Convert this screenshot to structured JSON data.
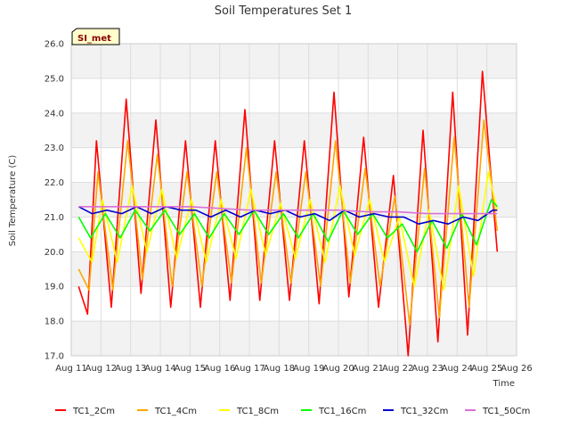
{
  "chart_data": {
    "type": "line",
    "title": "Soil Temperatures Set 1",
    "xlabel": "Time",
    "ylabel": "Soil Temperature (C)",
    "site_label": "SI_met",
    "xlim": [
      11,
      26
    ],
    "ylim": [
      17.0,
      26.0
    ],
    "x_ticks": [
      {
        "value": 11,
        "label": "Aug 11"
      },
      {
        "value": 12,
        "label": "Aug 12"
      },
      {
        "value": 13,
        "label": "Aug 13"
      },
      {
        "value": 14,
        "label": "Aug 14"
      },
      {
        "value": 15,
        "label": "Aug 15"
      },
      {
        "value": 16,
        "label": "Aug 16"
      },
      {
        "value": 17,
        "label": "Aug 17"
      },
      {
        "value": 18,
        "label": "Aug 18"
      },
      {
        "value": 19,
        "label": "Aug 19"
      },
      {
        "value": 20,
        "label": "Aug 20"
      },
      {
        "value": 21,
        "label": "Aug 21"
      },
      {
        "value": 22,
        "label": "Aug 22"
      },
      {
        "value": 23,
        "label": "Aug 23"
      },
      {
        "value": 24,
        "label": "Aug 24"
      },
      {
        "value": 25,
        "label": "Aug 25"
      },
      {
        "value": 26,
        "label": "Aug 26"
      }
    ],
    "y_ticks": [
      {
        "value": 17,
        "label": "17.0"
      },
      {
        "value": 18,
        "label": "18.0"
      },
      {
        "value": 19,
        "label": "19.0"
      },
      {
        "value": 20,
        "label": "20.0"
      },
      {
        "value": 21,
        "label": "21.0"
      },
      {
        "value": 22,
        "label": "22.0"
      },
      {
        "value": 23,
        "label": "23.0"
      },
      {
        "value": 24,
        "label": "24.0"
      },
      {
        "value": 25,
        "label": "25.0"
      },
      {
        "value": 26,
        "label": "26.0"
      }
    ],
    "grid": true,
    "legend_position": "bottom",
    "series": [
      {
        "name": "TC1_2Cm",
        "color": "#ff0000",
        "x": [
          11.25,
          11.55,
          11.85,
          12.35,
          12.85,
          13.35,
          13.85,
          14.35,
          14.85,
          15.35,
          15.85,
          16.35,
          16.85,
          17.35,
          17.85,
          18.35,
          18.85,
          19.35,
          19.85,
          20.35,
          20.85,
          21.35,
          21.85,
          22.35,
          22.85,
          23.35,
          23.85,
          24.35,
          24.85,
          25.35
        ],
        "y": [
          19.0,
          18.2,
          23.2,
          18.4,
          24.4,
          18.8,
          23.8,
          18.4,
          23.2,
          18.4,
          23.2,
          18.6,
          24.1,
          18.6,
          23.2,
          18.6,
          23.2,
          18.5,
          24.6,
          18.7,
          23.3,
          18.4,
          22.2,
          17.0,
          23.5,
          17.4,
          24.6,
          17.6,
          25.2,
          20.0
        ]
      },
      {
        "name": "TC1_4Cm",
        "color": "#ffa500",
        "x": [
          11.25,
          11.6,
          11.9,
          12.4,
          12.9,
          13.4,
          13.9,
          14.4,
          14.9,
          15.4,
          15.9,
          16.4,
          16.9,
          17.4,
          17.9,
          18.4,
          18.9,
          19.4,
          19.9,
          20.4,
          20.9,
          21.4,
          21.9,
          22.4,
          22.9,
          23.4,
          23.9,
          24.4,
          24.9,
          25.35
        ],
        "y": [
          19.5,
          18.9,
          22.3,
          18.9,
          23.2,
          19.2,
          22.8,
          19.0,
          22.3,
          19.0,
          22.3,
          19.1,
          23.0,
          19.1,
          22.3,
          19.1,
          22.3,
          19.0,
          23.2,
          19.1,
          22.4,
          19.0,
          21.6,
          17.9,
          22.4,
          18.1,
          23.3,
          18.4,
          23.8,
          20.6
        ]
      },
      {
        "name": "TC1_8Cm",
        "color": "#ffff00",
        "x": [
          11.25,
          11.7,
          12.05,
          12.55,
          13.05,
          13.55,
          14.05,
          14.55,
          15.05,
          15.55,
          16.05,
          16.55,
          17.05,
          17.55,
          18.05,
          18.55,
          19.05,
          19.55,
          20.05,
          20.55,
          21.05,
          21.55,
          22.05,
          22.55,
          23.05,
          23.55,
          24.05,
          24.55,
          25.05,
          25.35
        ],
        "y": [
          20.4,
          19.7,
          21.5,
          19.7,
          21.9,
          20.0,
          21.8,
          19.8,
          21.5,
          19.7,
          21.5,
          19.8,
          21.8,
          19.9,
          21.4,
          19.8,
          21.5,
          19.7,
          21.9,
          19.9,
          21.5,
          19.7,
          21.0,
          19.0,
          21.2,
          18.9,
          21.9,
          19.3,
          22.3,
          21.2
        ]
      },
      {
        "name": "TC1_16Cm",
        "color": "#00ff00",
        "x": [
          11.25,
          11.65,
          12.15,
          12.65,
          13.15,
          13.65,
          14.15,
          14.65,
          15.15,
          15.65,
          16.15,
          16.65,
          17.15,
          17.65,
          18.15,
          18.65,
          19.15,
          19.65,
          20.15,
          20.65,
          21.15,
          21.65,
          22.15,
          22.65,
          23.15,
          23.65,
          24.15,
          24.65,
          25.15,
          25.35
        ],
        "y": [
          21.0,
          20.4,
          21.1,
          20.4,
          21.2,
          20.6,
          21.2,
          20.5,
          21.1,
          20.4,
          21.1,
          20.5,
          21.2,
          20.5,
          21.1,
          20.4,
          21.1,
          20.3,
          21.2,
          20.5,
          21.1,
          20.4,
          20.8,
          20.0,
          20.9,
          20.1,
          21.1,
          20.2,
          21.5,
          21.3
        ]
      },
      {
        "name": "TC1_32Cm",
        "color": "#0000cd",
        "x": [
          11.25,
          11.7,
          12.2,
          12.7,
          13.2,
          13.7,
          14.2,
          14.7,
          15.2,
          15.7,
          16.2,
          16.7,
          17.2,
          17.7,
          18.2,
          18.7,
          19.2,
          19.7,
          20.2,
          20.7,
          21.2,
          21.7,
          22.2,
          22.7,
          23.2,
          23.7,
          24.2,
          24.7,
          25.2,
          25.35
        ],
        "y": [
          21.3,
          21.1,
          21.2,
          21.1,
          21.3,
          21.1,
          21.3,
          21.2,
          21.2,
          21.0,
          21.2,
          21.0,
          21.2,
          21.1,
          21.2,
          21.0,
          21.1,
          20.9,
          21.2,
          21.0,
          21.1,
          21.0,
          21.0,
          20.8,
          20.9,
          20.8,
          21.0,
          20.9,
          21.2,
          21.2
        ]
      },
      {
        "name": "TC1_50Cm",
        "color": "#da70d6",
        "x": [
          11.25,
          12.0,
          13.0,
          14.0,
          15.0,
          16.0,
          17.0,
          18.0,
          19.0,
          20.0,
          21.0,
          22.0,
          23.0,
          24.0,
          25.0,
          25.35
        ],
        "y": [
          21.3,
          21.3,
          21.3,
          21.3,
          21.3,
          21.25,
          21.2,
          21.2,
          21.2,
          21.2,
          21.15,
          21.15,
          21.1,
          21.1,
          21.1,
          21.1
        ]
      }
    ]
  }
}
